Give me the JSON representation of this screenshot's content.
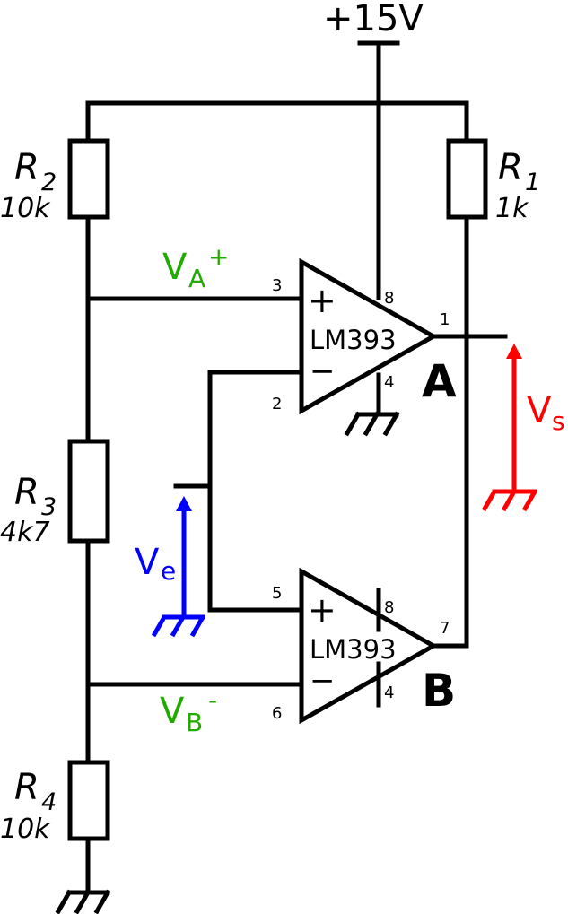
{
  "supply": {
    "label": "+15V"
  },
  "resistors": [
    {
      "name": "R",
      "sub": "2",
      "value": "10k"
    },
    {
      "name": "R",
      "sub": "1",
      "value": "1k"
    },
    {
      "name": "R",
      "sub": "3",
      "value": "4k7"
    },
    {
      "name": "R",
      "sub": "4",
      "value": "10k"
    }
  ],
  "opamp_a": {
    "part": "LM393",
    "id": "A",
    "plus": "+",
    "minus": "−",
    "pins": {
      "in_plus": "3",
      "in_minus": "2",
      "vcc": "8",
      "gnd": "4",
      "out": "1"
    }
  },
  "opamp_b": {
    "part": "LM393",
    "id": "B",
    "plus": "+",
    "minus": "−",
    "pins": {
      "in_plus": "5",
      "in_minus": "6",
      "vcc": "8",
      "gnd": "4",
      "out": "7"
    }
  },
  "nodes": {
    "va": {
      "main": "V",
      "sub": "A",
      "sup": "+",
      "color": "#22aa00"
    },
    "vb": {
      "main": "V",
      "sub": "B",
      "sup": "-",
      "color": "#22aa00"
    },
    "ve": {
      "main": "V",
      "sub": "e",
      "color": "#0000ff"
    },
    "vs": {
      "main": "V",
      "sub": "s",
      "color": "#ff0000"
    }
  }
}
